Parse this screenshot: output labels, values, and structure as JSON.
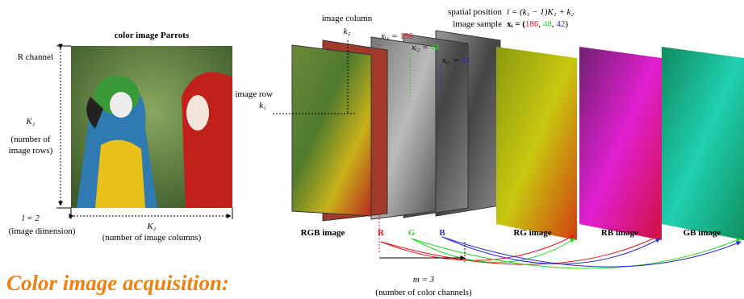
{
  "left": {
    "title": "color image Parrots",
    "r_channel": "R channel",
    "k1": "K₁",
    "rows_note": [
      "(number of",
      "image rows)"
    ],
    "l": "l = 2",
    "dimension": "(image dimension)",
    "k2": "K₂",
    "cols_note": "(number of image columns)"
  },
  "heading": "Color image acquisition:",
  "right": {
    "image_column": "image column",
    "k2": "k₂",
    "image_row": "image row",
    "k1": "k₁",
    "samples": [
      {
        "label": "xᵢ₁ = ",
        "value": 186,
        "color": "#e8181c"
      },
      {
        "label": "xᵢ₂ = ",
        "value": 48,
        "color": "#22d622"
      },
      {
        "label": "xᵢ₃ = ",
        "value": 42,
        "color": "#2b2bd0"
      }
    ],
    "spatial_position": "spatial position",
    "formula": "i = (k₁ − 1)K₁ + k₂",
    "image_sample": "image sample",
    "vector_open": "xᵢ = (",
    "separator": ", ",
    "vector_close": ")",
    "layers": [
      "RGB image",
      "R",
      "G",
      "B",
      "RG image",
      "RB image",
      "GB image"
    ],
    "m": "m = 3",
    "m_note": "(number of color channels)"
  }
}
